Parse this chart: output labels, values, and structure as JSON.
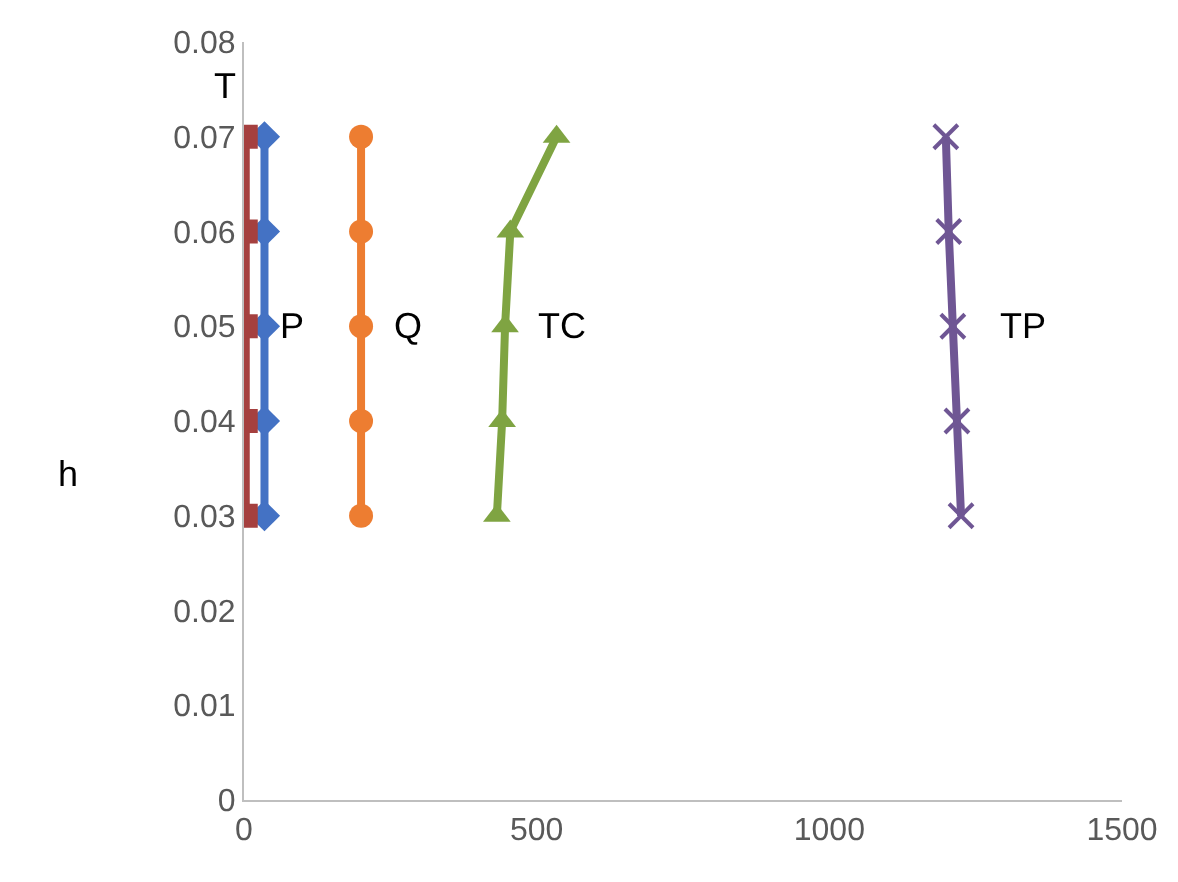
{
  "chart_data": {
    "type": "line",
    "ylabel": "h",
    "xlim": [
      0,
      1500
    ],
    "xticks": [
      0,
      500,
      1000,
      1500
    ],
    "ylim": [
      0,
      0.08
    ],
    "yticks": [
      0,
      {
        "value": 0.01,
        "label": "0.01"
      },
      {
        "value": 0.02,
        "label": "0.02"
      },
      {
        "value": 0.03,
        "label": "0.03"
      },
      {
        "value": 0.04,
        "label": "0.04"
      },
      {
        "value": 0.05,
        "label": "0.05"
      },
      {
        "value": 0.06,
        "label": "0.06"
      },
      {
        "value": 0.07,
        "label": "0.07"
      },
      {
        "value": 0.08,
        "label": "0.08"
      }
    ],
    "grid": false,
    "legend": false,
    "line_style": "solid",
    "series": [
      {
        "name": "P",
        "color": "#4472c4",
        "marker": "diamond",
        "x": [
          35,
          35,
          35,
          35,
          35
        ],
        "values": [
          0.03,
          0.04,
          0.05,
          0.06,
          0.07
        ]
      },
      {
        "name": "T",
        "color": "#a5403f",
        "marker": "square",
        "x": [
          3,
          3,
          3,
          3,
          3
        ],
        "values": [
          0.03,
          0.04,
          0.05,
          0.06,
          0.07
        ]
      },
      {
        "name": "Q",
        "color": "#ed7d31",
        "marker": "circle",
        "x": [
          200,
          200,
          200,
          200,
          200
        ],
        "values": [
          0.03,
          0.04,
          0.05,
          0.06,
          0.07
        ]
      },
      {
        "name": "TC",
        "color": "#7fa442",
        "marker": "triangle",
        "x": [
          432,
          441,
          446,
          455,
          534
        ],
        "values": [
          0.03,
          0.04,
          0.05,
          0.06,
          0.07
        ]
      },
      {
        "name": "TP",
        "color": "#6f5694",
        "marker": "cross",
        "x": [
          1225,
          1218,
          1211,
          1204,
          1199
        ],
        "values": [
          0.03,
          0.04,
          0.05,
          0.06,
          0.07
        ]
      }
    ]
  }
}
